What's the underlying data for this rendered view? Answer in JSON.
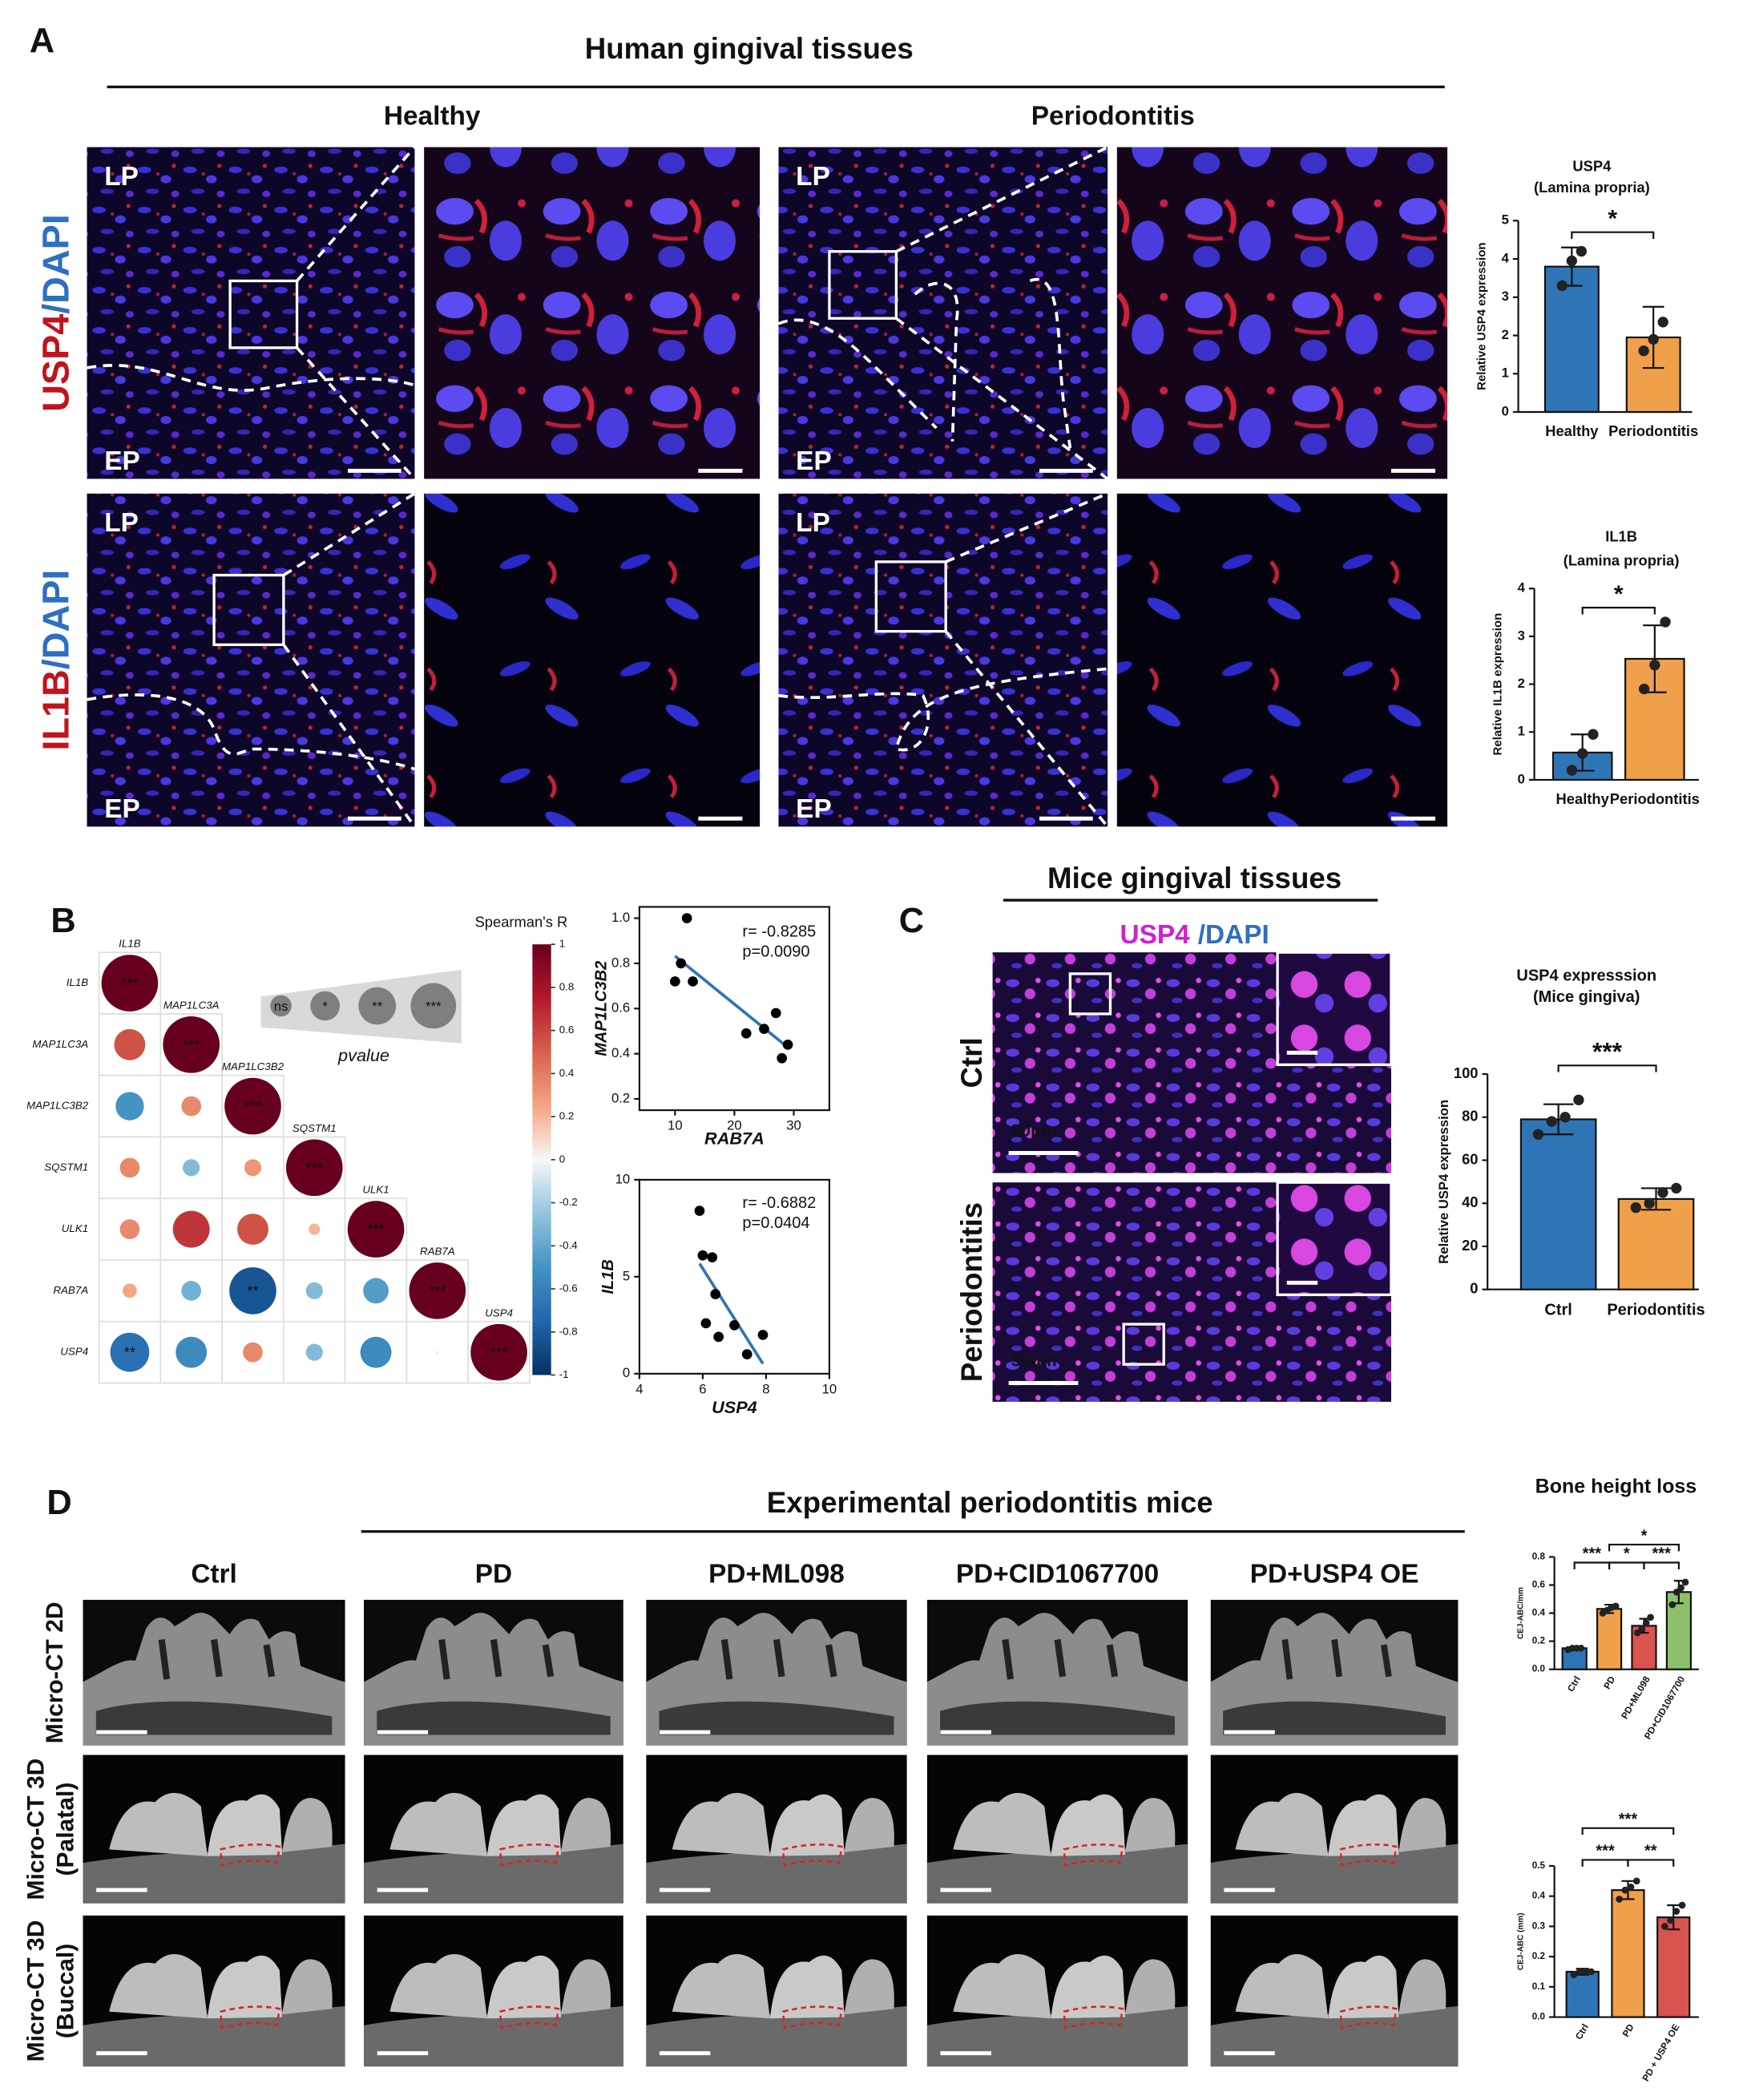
{
  "figure": {
    "panel_labels": [
      "A",
      "B",
      "C",
      "D"
    ],
    "panel_a": {
      "title": "Human gingival tissues",
      "columns": [
        "Healthy",
        "Periodontitis"
      ],
      "rows": [
        [
          "USP4",
          "/DAPI"
        ],
        [
          "IL1B",
          "/DAPI"
        ]
      ],
      "region_labels": [
        "LP",
        "EP"
      ]
    },
    "panel_c": {
      "title": "Mice gingival tissues",
      "stain": [
        "USP4",
        "/DAPI"
      ],
      "rows": [
        "Ctrl",
        "Periodontitis"
      ],
      "scale_bar": "50μm"
    },
    "panel_d": {
      "title": "Experimental periodontitis mice",
      "columns": [
        "Ctrl",
        "PD",
        "PD+ML098",
        "PD+CID1067700",
        "PD+USP4 OE"
      ],
      "rows": [
        [
          "Micro-CT 2D"
        ],
        [
          "Micro-CT 3D",
          "(Palatal)"
        ],
        [
          "Micro-CT 3D",
          "(Buccal)"
        ]
      ],
      "chart_heading": "Bone height loss"
    }
  },
  "chart_data": [
    {
      "type": "bar",
      "title": [
        "USP4",
        "(Lamina propria)"
      ],
      "ylabel": "Relative USP4 expression",
      "categories": [
        "Healthy",
        "Periodontitis"
      ],
      "values": [
        3.8,
        1.95
      ],
      "errors": [
        0.5,
        0.8
      ],
      "points": [
        [
          3.3,
          3.95,
          4.2
        ],
        [
          1.6,
          1.9,
          2.35
        ]
      ],
      "colors": [
        "#2e75b6",
        "#f0a04b"
      ],
      "ylim": [
        0,
        5
      ],
      "yticks": [
        0,
        1,
        2,
        3,
        4,
        5
      ],
      "significance": [
        "*"
      ]
    },
    {
      "type": "bar",
      "title": [
        "IL1B",
        "(Lamina propria)"
      ],
      "ylabel": "Relative IL1B expression",
      "categories": [
        "Healthy",
        "Periodontitis"
      ],
      "values": [
        0.57,
        2.53
      ],
      "errors": [
        0.38,
        0.7
      ],
      "points": [
        [
          0.2,
          0.55,
          0.95
        ],
        [
          1.9,
          2.4,
          3.3
        ]
      ],
      "colors": [
        "#2e75b6",
        "#f0a04b"
      ],
      "ylim": [
        0,
        4
      ],
      "yticks": [
        0,
        1,
        2,
        3,
        4
      ],
      "significance": [
        "*"
      ]
    },
    {
      "type": "corrplot",
      "title": "Spearman's R",
      "variables": [
        "IL1B",
        "MAP1LC3A",
        "MAP1LC3B2",
        "SQSTM1",
        "ULK1",
        "RAB7A",
        "USP4"
      ],
      "r": [
        [
          1
        ],
        [
          0.55,
          1
        ],
        [
          -0.5,
          0.35,
          1
        ],
        [
          0.35,
          -0.3,
          0.3,
          1
        ],
        [
          0.35,
          0.65,
          0.55,
          0.2,
          1
        ],
        [
          0.25,
          -0.35,
          -0.83,
          -0.3,
          -0.45,
          1
        ],
        [
          -0.69,
          -0.55,
          0.35,
          -0.3,
          -0.55,
          0.05,
          1
        ]
      ],
      "stars": [
        [
          "***"
        ],
        [
          null,
          "***"
        ],
        [
          null,
          null,
          "***"
        ],
        [
          null,
          null,
          null,
          "***"
        ],
        [
          null,
          null,
          null,
          null,
          "***"
        ],
        [
          null,
          null,
          "**",
          null,
          null,
          "***"
        ],
        [
          "**",
          null,
          null,
          null,
          null,
          null,
          "***"
        ]
      ],
      "clim": [
        -1,
        1
      ],
      "cticks": [
        1,
        0.8,
        0.6,
        0.4,
        0.2,
        0,
        -0.2,
        -0.4,
        -0.6,
        -0.8,
        -1
      ],
      "colormap": [
        "#053061",
        "#2166ac",
        "#4393c3",
        "#92c5de",
        "#f7f7f7",
        "#f4a582",
        "#d6604d",
        "#b2182b",
        "#67001f"
      ],
      "pvalue_legend": {
        "labels": [
          "ns",
          "*",
          "**",
          "***"
        ],
        "title": "pvalue"
      }
    },
    {
      "type": "scatter",
      "xlabel": "RAB7A",
      "ylabel": "MAP1LC3B2",
      "x": [
        10,
        11,
        12,
        13,
        22,
        25,
        27,
        28,
        29
      ],
      "y": [
        0.72,
        0.8,
        1.0,
        0.72,
        0.49,
        0.51,
        0.58,
        0.38,
        0.44
      ],
      "xlim": [
        4,
        36
      ],
      "xticks": [
        10,
        20,
        30
      ],
      "ylim": [
        0.15,
        1.05
      ],
      "yticks": [
        0.2,
        0.4,
        0.6,
        0.8,
        {
          "value": 1,
          "label": "1.0"
        }
      ],
      "annotations": [
        "r= -0.8285",
        "p=0.0090"
      ],
      "color": "#000000",
      "line_color": "#2e75b6"
    },
    {
      "type": "scatter",
      "xlabel": "USP4",
      "ylabel": "IL1B",
      "x": [
        5.9,
        6.0,
        6.3,
        6.4,
        6.1,
        6.5,
        7.0,
        7.4,
        7.9
      ],
      "y": [
        8.4,
        6.1,
        6.0,
        4.1,
        2.6,
        1.9,
        2.5,
        1.0,
        2.0
      ],
      "xlim": [
        4,
        10
      ],
      "xticks": [
        4,
        6,
        8,
        10
      ],
      "ylim": [
        0,
        10
      ],
      "yticks": [
        0,
        5,
        10
      ],
      "annotations": [
        "r= -0.6882",
        "p=0.0404"
      ],
      "color": "#000000",
      "line_color": "#2e75b6"
    },
    {
      "type": "bar",
      "title": [
        "USP4 expresssion",
        "(Mice gingiva)"
      ],
      "ylabel": "Relative USP4 expression",
      "categories": [
        "Ctrl",
        "Periodontitis"
      ],
      "values": [
        79,
        42
      ],
      "errors": [
        7,
        5
      ],
      "points": [
        [
          72,
          78,
          80,
          88
        ],
        [
          38,
          40,
          45,
          47
        ]
      ],
      "colors": [
        "#2e75b6",
        "#f0a04b"
      ],
      "ylim": [
        0,
        100
      ],
      "yticks": [
        0,
        20,
        40,
        60,
        80,
        100
      ],
      "significance": [
        "***"
      ]
    },
    {
      "type": "bar",
      "ylabel": "CEJ-ABC/mm",
      "categories": [
        "Ctrl",
        "PD",
        "PD+ML098",
        "PD+CID1067700"
      ],
      "values": [
        0.15,
        0.43,
        0.31,
        0.55
      ],
      "errors": [
        0.01,
        0.03,
        0.05,
        0.08
      ],
      "points": [
        [
          0.14,
          0.15,
          0.15,
          0.15
        ],
        [
          0.4,
          0.42,
          0.44,
          0.45
        ],
        [
          0.26,
          0.29,
          0.33,
          0.37
        ],
        [
          0.46,
          0.55,
          0.58,
          0.62
        ]
      ],
      "colors": [
        "#2e75b6",
        "#f0a04b",
        "#d9534f",
        "#8cc06b"
      ],
      "ylim": [
        0,
        0.8
      ],
      "yticks": [
        {
          "value": 0,
          "label": "0.0"
        },
        0.2,
        0.4,
        0.6,
        0.8
      ],
      "significance": [
        "***",
        "*",
        "***",
        "*"
      ]
    },
    {
      "type": "bar",
      "ylabel": "CEJ-ABC (mm)",
      "categories": [
        "Ctrl",
        "PD",
        "PD + USP4 OE"
      ],
      "values": [
        0.15,
        0.42,
        0.33
      ],
      "errors": [
        0.01,
        0.03,
        0.04
      ],
      "points": [
        [
          0.14,
          0.15,
          0.15,
          0.15
        ],
        [
          0.39,
          0.42,
          0.43,
          0.45
        ],
        [
          0.3,
          0.32,
          0.35,
          0.37
        ]
      ],
      "colors": [
        "#2e75b6",
        "#f0a04b",
        "#d9534f"
      ],
      "ylim": [
        0,
        0.5
      ],
      "yticks": [
        {
          "value": 0,
          "label": "0.0"
        },
        0.1,
        0.2,
        0.3,
        0.4,
        0.5
      ],
      "significance": [
        "***",
        "**",
        "***"
      ]
    }
  ]
}
